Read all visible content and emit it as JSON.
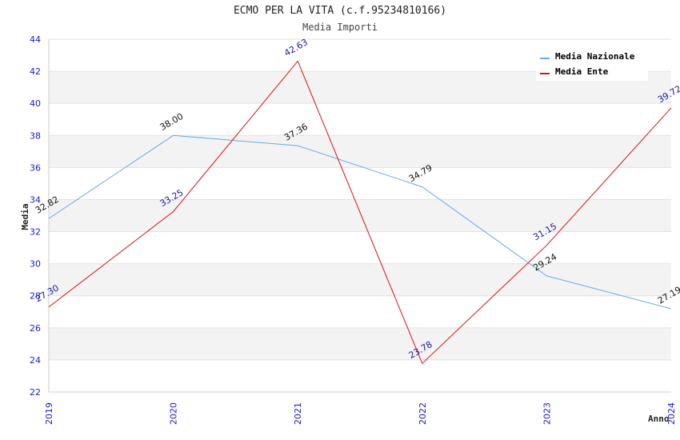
{
  "chart_data": {
    "type": "line",
    "title": "ECMO PER LA VITA (c.f.95234810166)",
    "subtitle": "Media Importi",
    "xlabel": "Anno",
    "ylabel": "Media",
    "ylim": [
      22,
      44
    ],
    "yticks": [
      22,
      24,
      26,
      28,
      30,
      32,
      34,
      36,
      38,
      40,
      42,
      44
    ],
    "categories": [
      "2019",
      "2020",
      "2021",
      "2022",
      "2023",
      "2024"
    ],
    "legend_position": "top-right",
    "series": [
      {
        "name": "Media Nazionale",
        "color": "#6aa8e8",
        "label_color": "#111111",
        "values": [
          32.82,
          38.0,
          37.36,
          34.79,
          29.24,
          27.19
        ],
        "labels": [
          "32.82",
          "38.00",
          "37.36",
          "34.79",
          "29.24",
          "27.19"
        ]
      },
      {
        "name": "Media Ente",
        "color": "#dd1111",
        "label_color": "#1a1a99",
        "values": [
          27.3,
          33.25,
          42.63,
          23.78,
          31.15,
          39.72
        ],
        "labels": [
          "27.30",
          "33.25",
          "42.63",
          "23.78",
          "31.15",
          "39.72"
        ]
      }
    ]
  }
}
